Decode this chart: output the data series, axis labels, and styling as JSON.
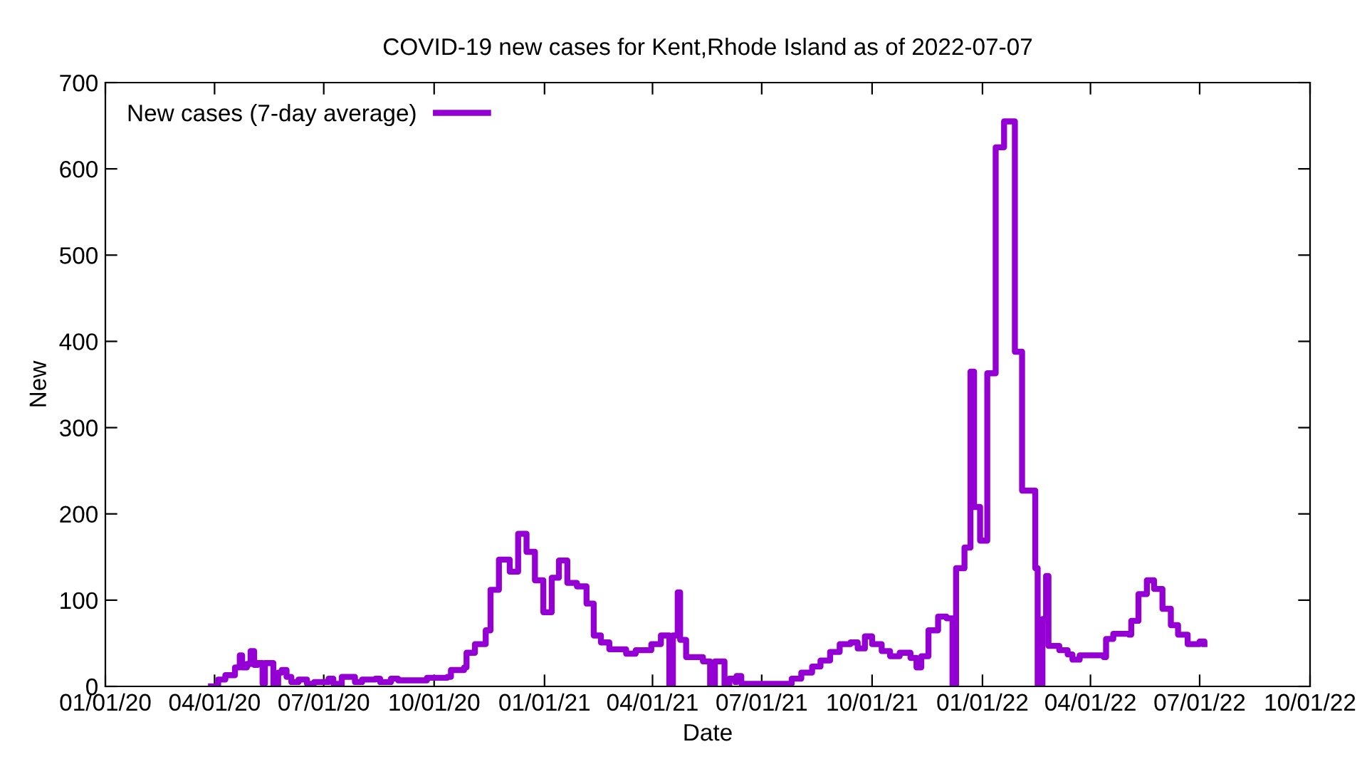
{
  "chart_data": {
    "type": "step",
    "title": "COVID-19 new cases for Kent,Rhode Island as of 2022-07-07",
    "xlabel": "Date",
    "ylabel": "New",
    "legend": "top left",
    "grid": false,
    "line_style": "solid",
    "marker": "none",
    "xlim": [
      "2020-01-01",
      "2022-10-01"
    ],
    "ylim": [
      0,
      700
    ],
    "xticks": [
      {
        "value": "2020-01-01",
        "label": "01/01/20"
      },
      {
        "value": "2020-04-01",
        "label": "04/01/20"
      },
      {
        "value": "2020-07-01",
        "label": "07/01/20"
      },
      {
        "value": "2020-10-01",
        "label": "10/01/20"
      },
      {
        "value": "2021-01-01",
        "label": "01/01/21"
      },
      {
        "value": "2021-04-01",
        "label": "04/01/21"
      },
      {
        "value": "2021-07-01",
        "label": "07/01/21"
      },
      {
        "value": "2021-10-01",
        "label": "10/01/21"
      },
      {
        "value": "2022-01-01",
        "label": "01/01/22"
      },
      {
        "value": "2022-04-01",
        "label": "04/01/22"
      },
      {
        "value": "2022-07-01",
        "label": "07/01/22"
      },
      {
        "value": "2022-10-01",
        "label": "10/01/22"
      }
    ],
    "yticks": [
      0,
      100,
      200,
      300,
      400,
      500,
      600,
      700
    ],
    "series": [
      {
        "name": "New cases (7-day average)",
        "color": "#9400d3",
        "x": [
          "2020-03-29",
          "2020-04-04",
          "2020-04-10",
          "2020-04-17",
          "2020-04-18",
          "2020-04-22",
          "2020-04-24",
          "2020-04-28",
          "2020-05-01",
          "2020-05-04",
          "2020-05-07",
          "2020-05-11",
          "2020-05-13",
          "2020-05-19",
          "2020-05-20",
          "2020-05-24",
          "2020-05-27",
          "2020-05-31",
          "2020-06-04",
          "2020-06-10",
          "2020-06-17",
          "2020-06-23",
          "2020-07-01",
          "2020-07-05",
          "2020-07-09",
          "2020-07-15",
          "2020-07-16",
          "2020-07-25",
          "2020-07-27",
          "2020-08-02",
          "2020-08-13",
          "2020-08-17",
          "2020-08-26",
          "2020-09-01",
          "2020-09-18",
          "2020-09-25",
          "2020-10-12",
          "2020-10-15",
          "2020-10-26",
          "2020-10-28",
          "2020-11-04",
          "2020-11-13",
          "2020-11-17",
          "2020-11-24",
          "2020-12-03",
          "2020-12-10",
          "2020-12-17",
          "2020-12-24",
          "2020-12-31",
          "2021-01-07",
          "2021-01-13",
          "2021-01-20",
          "2021-01-28",
          "2021-02-05",
          "2021-02-11",
          "2021-02-17",
          "2021-02-24",
          "2021-03-10",
          "2021-03-18",
          "2021-03-31",
          "2021-04-08",
          "2021-04-15",
          "2021-04-18",
          "2021-04-22",
          "2021-04-24",
          "2021-04-29",
          "2021-05-13",
          "2021-05-19",
          "2021-05-23",
          "2021-05-31",
          "2021-06-04",
          "2021-06-09",
          "2021-06-10",
          "2021-06-14",
          "2021-07-13",
          "2021-07-26",
          "2021-08-03",
          "2021-08-12",
          "2021-08-19",
          "2021-08-27",
          "2021-09-04",
          "2021-09-13",
          "2021-09-19",
          "2021-09-25",
          "2021-10-01",
          "2021-10-09",
          "2021-10-16",
          "2021-10-24",
          "2021-11-02",
          "2021-11-07",
          "2021-11-11",
          "2021-11-17",
          "2021-11-25",
          "2021-12-02",
          "2021-12-07",
          "2021-12-10",
          "2021-12-17",
          "2021-12-22",
          "2021-12-25",
          "2021-12-30",
          "2022-01-05",
          "2022-01-12",
          "2022-01-19",
          "2022-01-28",
          "2022-02-03",
          "2022-02-14",
          "2022-02-16",
          "2022-02-20",
          "2022-02-23",
          "2022-02-25",
          "2022-03-06",
          "2022-03-13",
          "2022-03-17",
          "2022-03-23",
          "2022-04-12",
          "2022-04-14",
          "2022-04-20",
          "2022-05-03",
          "2022-05-05",
          "2022-05-11",
          "2022-05-18",
          "2022-05-24",
          "2022-05-31",
          "2022-06-07",
          "2022-06-13",
          "2022-06-21",
          "2022-07-01",
          "2022-07-05"
        ],
        "values": [
          0,
          8,
          13,
          13,
          22,
          36,
          22,
          26,
          41,
          25,
          27,
          3,
          27,
          27,
          0,
          16,
          19,
          11,
          5,
          8,
          3,
          5,
          5,
          9,
          3,
          0,
          11,
          11,
          5,
          8,
          9,
          5,
          9,
          7,
          7,
          10,
          11,
          19,
          22,
          39,
          49,
          65,
          112,
          147,
          133,
          177,
          156,
          123,
          86,
          126,
          146,
          120,
          116,
          96,
          59,
          51,
          43,
          38,
          42,
          49,
          59,
          0,
          59,
          109,
          54,
          34,
          29,
          0,
          29,
          0,
          9,
          5,
          12,
          3,
          3,
          9,
          16,
          23,
          30,
          40,
          49,
          51,
          44,
          58,
          49,
          41,
          35,
          39,
          33,
          22,
          35,
          65,
          81,
          79,
          0,
          137,
          161,
          365,
          208,
          169,
          363,
          625,
          655,
          388,
          227,
          137,
          0,
          78,
          128,
          47,
          42,
          37,
          31,
          36,
          34,
          55,
          61,
          60,
          76,
          107,
          123,
          113,
          90,
          71,
          60,
          49,
          52,
          49
        ]
      }
    ]
  }
}
